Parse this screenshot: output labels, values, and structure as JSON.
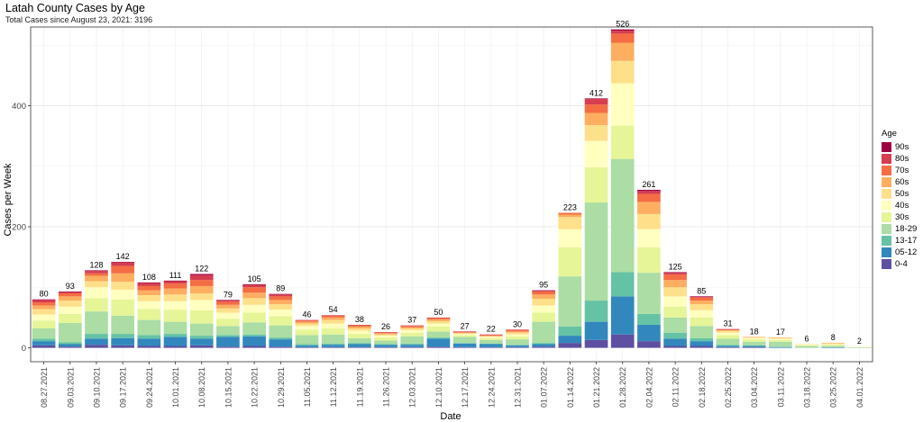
{
  "header": {
    "title": "Latah County Cases by Age",
    "subtitle": "Total Cases since August 23, 2021:  3196"
  },
  "chart_data": {
    "type": "bar",
    "stacked": true,
    "xlabel": "Date",
    "ylabel": "Cases per Week",
    "ylim": [
      0,
      530
    ],
    "yticks": [
      0,
      200,
      400
    ],
    "grid": true,
    "legend_position": "right",
    "legend_title": "Age",
    "categories": [
      "08.27.2021",
      "09.03.2021",
      "09.10.2021",
      "09.17.2021",
      "09.24.2021",
      "10.01.2021",
      "10.08.2021",
      "10.15.2021",
      "10.22.2021",
      "10.29.2021",
      "11.05.2021",
      "11.12.2021",
      "11.19.2021",
      "11.26.2021",
      "12.03.2021",
      "12.10.2021",
      "12.17.2021",
      "12.24.2021",
      "12.31.2021",
      "01.07.2022",
      "01.14.2022",
      "01.21.2022",
      "01.28.2022",
      "02.04.2022",
      "02.11.2022",
      "02.18.2022",
      "02.25.2022",
      "03.04.2022",
      "03.11.2022",
      "03.18.2022",
      "03.25.2022",
      "04.01.2022"
    ],
    "totals": [
      80,
      93,
      128,
      142,
      108,
      111,
      122,
      79,
      105,
      89,
      46,
      54,
      38,
      26,
      37,
      50,
      27,
      22,
      30,
      95,
      223,
      412,
      526,
      261,
      125,
      85,
      31,
      18,
      17,
      6,
      8,
      2
    ],
    "series": [
      {
        "name": "0-4",
        "color": "#5E4FA2",
        "values": [
          4,
          2,
          5,
          4,
          3,
          3,
          4,
          2,
          3,
          2,
          1,
          1,
          1,
          1,
          1,
          2,
          1,
          1,
          1,
          2,
          8,
          13,
          22,
          11,
          3,
          3,
          1,
          1,
          0,
          0,
          0,
          0
        ]
      },
      {
        "name": "05-12",
        "color": "#3288BD",
        "values": [
          7,
          4,
          10,
          12,
          12,
          15,
          11,
          16,
          16,
          12,
          3,
          4,
          5,
          4,
          4,
          13,
          6,
          5,
          3,
          4,
          12,
          30,
          63,
          27,
          12,
          8,
          2,
          2,
          1,
          0,
          1,
          0
        ]
      },
      {
        "name": "13-17",
        "color": "#66C2A5",
        "values": [
          4,
          3,
          8,
          7,
          6,
          5,
          5,
          3,
          3,
          3,
          2,
          2,
          2,
          1,
          2,
          2,
          1,
          1,
          1,
          2,
          15,
          35,
          40,
          18,
          10,
          5,
          2,
          1,
          1,
          0,
          0,
          0
        ]
      },
      {
        "name": "18-29",
        "color": "#ABDDA4",
        "values": [
          17,
          32,
          37,
          30,
          25,
          20,
          20,
          15,
          20,
          20,
          15,
          15,
          8,
          6,
          12,
          10,
          10,
          6,
          9,
          35,
          83,
          162,
          187,
          68,
          25,
          20,
          10,
          6,
          8,
          3,
          2,
          1
        ]
      },
      {
        "name": "30s",
        "color": "#E6F598",
        "values": [
          13,
          15,
          22,
          27,
          18,
          20,
          22,
          12,
          16,
          15,
          9,
          10,
          7,
          5,
          6,
          8,
          3,
          3,
          5,
          15,
          48,
          58,
          55,
          42,
          18,
          14,
          6,
          4,
          3,
          1,
          2,
          0
        ]
      },
      {
        "name": "40s",
        "color": "#FFFFBF",
        "values": [
          10,
          12,
          18,
          16,
          13,
          14,
          17,
          10,
          13,
          11,
          6,
          8,
          5,
          3,
          4,
          5,
          2,
          2,
          3,
          12,
          30,
          44,
          70,
          30,
          17,
          12,
          4,
          2,
          2,
          1,
          1,
          1
        ]
      },
      {
        "name": "50s",
        "color": "#FEE08B",
        "values": [
          9,
          10,
          10,
          13,
          10,
          11,
          11,
          7,
          11,
          9,
          4,
          6,
          4,
          2,
          3,
          4,
          1,
          1,
          3,
          11,
          20,
          26,
          37,
          25,
          15,
          10,
          3,
          1,
          1,
          1,
          1,
          0
        ]
      },
      {
        "name": "60s",
        "color": "#FDAE61",
        "values": [
          6,
          7,
          9,
          14,
          8,
          10,
          12,
          6,
          9,
          7,
          3,
          4,
          3,
          2,
          2,
          3,
          1,
          1,
          2,
          7,
          4,
          20,
          30,
          20,
          12,
          6,
          1,
          1,
          1,
          0,
          1,
          0
        ]
      },
      {
        "name": "70s",
        "color": "#F46D43",
        "values": [
          5,
          5,
          4,
          12,
          7,
          8,
          10,
          5,
          9,
          6,
          2,
          3,
          2,
          1,
          2,
          2,
          1,
          1,
          2,
          5,
          3,
          14,
          15,
          13,
          9,
          5,
          1,
          0,
          0,
          0,
          0,
          0
        ]
      },
      {
        "name": "80s",
        "color": "#D53E4F",
        "values": [
          4,
          2,
          4,
          6,
          5,
          4,
          8,
          2,
          4,
          3,
          1,
          1,
          1,
          1,
          1,
          1,
          1,
          1,
          1,
          1,
          0,
          9,
          5,
          5,
          3,
          1,
          1,
          0,
          0,
          0,
          0,
          0
        ]
      },
      {
        "name": "90s",
        "color": "#9E0142",
        "values": [
          1,
          1,
          1,
          1,
          1,
          1,
          2,
          1,
          1,
          1,
          0,
          0,
          0,
          0,
          0,
          0,
          0,
          0,
          0,
          1,
          0,
          1,
          2,
          2,
          1,
          1,
          0,
          0,
          0,
          0,
          0,
          0
        ]
      }
    ]
  }
}
